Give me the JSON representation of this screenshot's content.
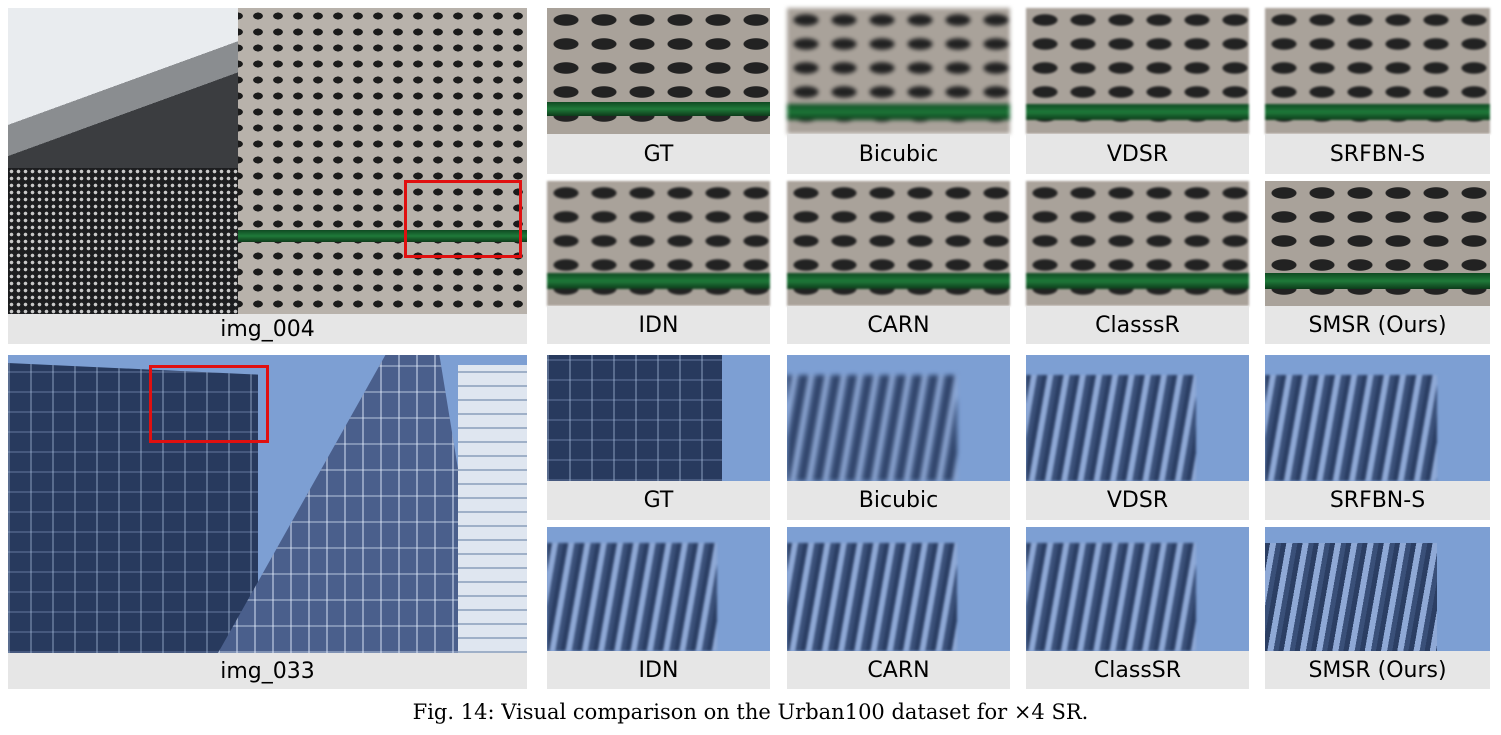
{
  "rows": [
    {
      "main_label": "img_004",
      "crops": [
        {
          "label": "GT"
        },
        {
          "label": "Bicubic"
        },
        {
          "label": "VDSR"
        },
        {
          "label": "SRFBN-S"
        },
        {
          "label": "IDN"
        },
        {
          "label": "CARN"
        },
        {
          "label": "ClasssR"
        },
        {
          "label": "SMSR (Ours)"
        }
      ]
    },
    {
      "main_label": "img_033",
      "crops": [
        {
          "label": "GT"
        },
        {
          "label": "Bicubic"
        },
        {
          "label": "VDSR"
        },
        {
          "label": "SRFBN-S"
        },
        {
          "label": "IDN"
        },
        {
          "label": "CARN"
        },
        {
          "label": "ClassSR"
        },
        {
          "label": "SMSR (Ours)"
        }
      ]
    }
  ],
  "caption": "Fig. 14: Visual comparison on the Urban100 dataset for ×4 SR.",
  "colors": {
    "highlight_box": "#e01010",
    "label_bg": "#e6e6e6"
  }
}
